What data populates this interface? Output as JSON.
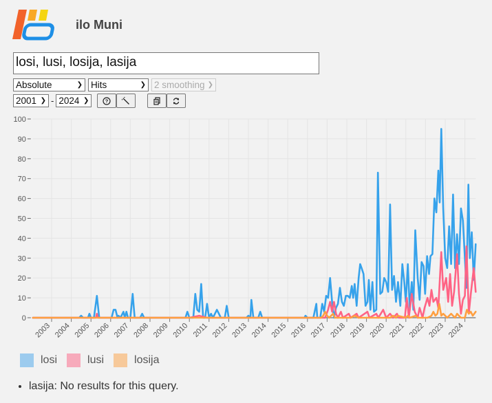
{
  "app": {
    "title": "ilo Muni"
  },
  "query": {
    "value": "losi, lusi, losija, lasija"
  },
  "controls": {
    "scale": "Absolute",
    "metric": "Hits",
    "smoothing": "2 smoothing",
    "start_year": "2001",
    "separator": "-",
    "end_year": "2024",
    "buttons": {
      "help": "?",
      "settings": "wrench",
      "copy": "copy",
      "refresh": "refresh"
    }
  },
  "notes": [
    "lasija: No results for this query."
  ],
  "colors": {
    "losi": "#36a2eb",
    "lusi": "#ff6384",
    "losija": "#ff9f40"
  },
  "chart_data": {
    "type": "line",
    "title": "",
    "xlabel": "",
    "ylabel": "",
    "ylim": [
      0,
      100
    ],
    "yticks": [
      0,
      10,
      20,
      30,
      40,
      50,
      60,
      70,
      80,
      90,
      100
    ],
    "xticks": [
      "2003",
      "2004",
      "2005",
      "2006",
      "2007",
      "2008",
      "2009",
      "2010",
      "2011",
      "2012",
      "2013",
      "2014",
      "2015",
      "2016",
      "2017",
      "2018",
      "2019",
      "2020",
      "2021",
      "2022",
      "2023",
      "2024"
    ],
    "xrange": [
      2002.05,
      2024.55
    ],
    "grid": true,
    "legend": [
      "losi",
      "lusi",
      "losija"
    ],
    "legend_position": "bottom",
    "series": [
      {
        "name": "losi",
        "color": "#36a2eb",
        "points": [
          [
            2002.05,
            0
          ],
          [
            2004.4,
            0
          ],
          [
            2004.5,
            1
          ],
          [
            2004.6,
            0
          ],
          [
            2004.85,
            0
          ],
          [
            2004.92,
            2
          ],
          [
            2005.0,
            0
          ],
          [
            2005.15,
            0
          ],
          [
            2005.3,
            11
          ],
          [
            2005.42,
            0
          ],
          [
            2006.05,
            0
          ],
          [
            2006.15,
            4
          ],
          [
            2006.25,
            4
          ],
          [
            2006.35,
            0
          ],
          [
            2006.4,
            1
          ],
          [
            2006.5,
            0
          ],
          [
            2006.65,
            3
          ],
          [
            2006.72,
            0
          ],
          [
            2006.8,
            3
          ],
          [
            2006.88,
            0
          ],
          [
            2007.0,
            0
          ],
          [
            2007.12,
            12
          ],
          [
            2007.22,
            0
          ],
          [
            2007.5,
            0
          ],
          [
            2007.6,
            2
          ],
          [
            2007.7,
            0
          ],
          [
            2009.8,
            0
          ],
          [
            2009.9,
            3
          ],
          [
            2010.0,
            0
          ],
          [
            2010.2,
            0
          ],
          [
            2010.3,
            12
          ],
          [
            2010.4,
            4
          ],
          [
            2010.5,
            3
          ],
          [
            2010.6,
            17
          ],
          [
            2010.7,
            0
          ],
          [
            2010.8,
            0
          ],
          [
            2010.9,
            7
          ],
          [
            2011.0,
            0
          ],
          [
            2011.1,
            2
          ],
          [
            2011.2,
            0
          ],
          [
            2011.3,
            2
          ],
          [
            2011.4,
            4
          ],
          [
            2011.5,
            2
          ],
          [
            2011.6,
            0
          ],
          [
            2011.8,
            0
          ],
          [
            2011.9,
            6
          ],
          [
            2012.0,
            0
          ],
          [
            2012.9,
            0
          ],
          [
            2013.0,
            1
          ],
          [
            2013.1,
            0
          ],
          [
            2013.15,
            9
          ],
          [
            2013.25,
            0
          ],
          [
            2013.5,
            0
          ],
          [
            2013.6,
            3
          ],
          [
            2013.7,
            0
          ],
          [
            2015.85,
            0
          ],
          [
            2015.9,
            1
          ],
          [
            2016.0,
            0
          ],
          [
            2016.3,
            0
          ],
          [
            2016.45,
            7
          ],
          [
            2016.5,
            0
          ],
          [
            2016.65,
            0
          ],
          [
            2016.75,
            7
          ],
          [
            2016.85,
            3
          ],
          [
            2016.95,
            11
          ],
          [
            2017.05,
            10
          ],
          [
            2017.15,
            20
          ],
          [
            2017.25,
            8
          ],
          [
            2017.35,
            0
          ],
          [
            2017.45,
            5
          ],
          [
            2017.55,
            7
          ],
          [
            2017.65,
            15
          ],
          [
            2017.75,
            8
          ],
          [
            2017.85,
            6
          ],
          [
            2017.95,
            11
          ],
          [
            2018.05,
            11
          ],
          [
            2018.15,
            10
          ],
          [
            2018.25,
            16
          ],
          [
            2018.32,
            10
          ],
          [
            2018.4,
            17
          ],
          [
            2018.5,
            6
          ],
          [
            2018.6,
            20
          ],
          [
            2018.68,
            27
          ],
          [
            2018.75,
            25
          ],
          [
            2018.85,
            22
          ],
          [
            2018.95,
            6
          ],
          [
            2019.05,
            8
          ],
          [
            2019.12,
            19
          ],
          [
            2019.2,
            4
          ],
          [
            2019.3,
            18
          ],
          [
            2019.38,
            3
          ],
          [
            2019.5,
            4
          ],
          [
            2019.58,
            73
          ],
          [
            2019.7,
            12
          ],
          [
            2019.8,
            13
          ],
          [
            2019.9,
            20
          ],
          [
            2020.0,
            18
          ],
          [
            2020.1,
            13
          ],
          [
            2020.2,
            57
          ],
          [
            2020.3,
            14
          ],
          [
            2020.4,
            21
          ],
          [
            2020.5,
            8
          ],
          [
            2020.6,
            18
          ],
          [
            2020.72,
            6
          ],
          [
            2020.82,
            27
          ],
          [
            2020.92,
            18
          ],
          [
            2021.0,
            8
          ],
          [
            2021.1,
            27
          ],
          [
            2021.2,
            4
          ],
          [
            2021.3,
            18
          ],
          [
            2021.38,
            4
          ],
          [
            2021.48,
            44
          ],
          [
            2021.6,
            20
          ],
          [
            2021.7,
            9
          ],
          [
            2021.8,
            28
          ],
          [
            2021.9,
            26
          ],
          [
            2021.98,
            12
          ],
          [
            2022.08,
            31
          ],
          [
            2022.18,
            22
          ],
          [
            2022.25,
            31
          ],
          [
            2022.35,
            32
          ],
          [
            2022.45,
            60
          ],
          [
            2022.55,
            53
          ],
          [
            2022.65,
            74
          ],
          [
            2022.72,
            58
          ],
          [
            2022.8,
            95
          ],
          [
            2022.9,
            55
          ],
          [
            2023.0,
            30
          ],
          [
            2023.1,
            25
          ],
          [
            2023.2,
            46
          ],
          [
            2023.3,
            27
          ],
          [
            2023.4,
            62
          ],
          [
            2023.5,
            25
          ],
          [
            2023.6,
            42
          ],
          [
            2023.7,
            27
          ],
          [
            2023.8,
            55
          ],
          [
            2023.9,
            49
          ],
          [
            2024.0,
            30
          ],
          [
            2024.08,
            15
          ],
          [
            2024.18,
            67
          ],
          [
            2024.25,
            30
          ],
          [
            2024.35,
            43
          ],
          [
            2024.45,
            19
          ],
          [
            2024.55,
            37
          ]
        ]
      },
      {
        "name": "lusi",
        "color": "#ff6384",
        "points": [
          [
            2002.05,
            0
          ],
          [
            2005.25,
            0
          ],
          [
            2005.3,
            2
          ],
          [
            2005.35,
            0
          ],
          [
            2010.0,
            0
          ],
          [
            2010.5,
            1
          ],
          [
            2010.9,
            0
          ],
          [
            2016.9,
            0
          ],
          [
            2017.05,
            4
          ],
          [
            2017.15,
            8
          ],
          [
            2017.25,
            3
          ],
          [
            2017.35,
            8
          ],
          [
            2017.45,
            2
          ],
          [
            2017.55,
            0
          ],
          [
            2017.7,
            3
          ],
          [
            2017.8,
            0
          ],
          [
            2018.1,
            2
          ],
          [
            2018.2,
            0
          ],
          [
            2018.5,
            2
          ],
          [
            2018.6,
            0
          ],
          [
            2019.05,
            3
          ],
          [
            2019.15,
            0
          ],
          [
            2019.5,
            2
          ],
          [
            2019.6,
            0
          ],
          [
            2019.85,
            4
          ],
          [
            2020.0,
            0
          ],
          [
            2020.2,
            2
          ],
          [
            2020.35,
            0
          ],
          [
            2020.55,
            2
          ],
          [
            2020.65,
            0
          ],
          [
            2020.95,
            0
          ],
          [
            2021.05,
            10
          ],
          [
            2021.15,
            0
          ],
          [
            2021.3,
            12
          ],
          [
            2021.45,
            3
          ],
          [
            2021.6,
            0
          ],
          [
            2021.7,
            5
          ],
          [
            2021.85,
            0
          ],
          [
            2021.95,
            5
          ],
          [
            2022.1,
            10
          ],
          [
            2022.2,
            6
          ],
          [
            2022.3,
            14
          ],
          [
            2022.4,
            8
          ],
          [
            2022.55,
            10
          ],
          [
            2022.65,
            5
          ],
          [
            2022.8,
            33
          ],
          [
            2022.9,
            14
          ],
          [
            2023.05,
            20
          ],
          [
            2023.15,
            8
          ],
          [
            2023.25,
            22
          ],
          [
            2023.35,
            6
          ],
          [
            2023.45,
            13
          ],
          [
            2023.6,
            32
          ],
          [
            2023.7,
            12
          ],
          [
            2023.8,
            2
          ],
          [
            2023.9,
            9
          ],
          [
            2024.0,
            11
          ],
          [
            2024.08,
            36
          ],
          [
            2024.2,
            2
          ],
          [
            2024.3,
            12
          ],
          [
            2024.45,
            25
          ],
          [
            2024.55,
            13
          ]
        ]
      },
      {
        "name": "losija",
        "color": "#ff9f40",
        "points": [
          [
            2002.05,
            0
          ],
          [
            2016.7,
            0
          ],
          [
            2016.8,
            1
          ],
          [
            2016.9,
            3
          ],
          [
            2017.0,
            1
          ],
          [
            2017.1,
            0
          ],
          [
            2017.3,
            2
          ],
          [
            2017.4,
            0
          ],
          [
            2018.2,
            0
          ],
          [
            2018.4,
            1
          ],
          [
            2018.6,
            0
          ],
          [
            2020.2,
            0
          ],
          [
            2020.35,
            1
          ],
          [
            2020.5,
            0
          ],
          [
            2020.6,
            1
          ],
          [
            2021.0,
            0
          ],
          [
            2021.1,
            1
          ],
          [
            2021.2,
            0
          ],
          [
            2021.5,
            1
          ],
          [
            2021.6,
            0
          ],
          [
            2022.1,
            0
          ],
          [
            2022.3,
            1
          ],
          [
            2022.4,
            3
          ],
          [
            2022.5,
            1
          ],
          [
            2022.6,
            2
          ],
          [
            2022.7,
            7
          ],
          [
            2022.8,
            1
          ],
          [
            2022.9,
            2
          ],
          [
            2023.0,
            1
          ],
          [
            2023.1,
            0
          ],
          [
            2023.3,
            2
          ],
          [
            2023.4,
            1
          ],
          [
            2023.5,
            0
          ],
          [
            2023.6,
            2
          ],
          [
            2023.7,
            1
          ],
          [
            2023.8,
            0
          ],
          [
            2024.0,
            0
          ],
          [
            2024.1,
            4
          ],
          [
            2024.2,
            2
          ],
          [
            2024.3,
            3
          ],
          [
            2024.4,
            1
          ],
          [
            2024.55,
            3
          ]
        ]
      }
    ]
  }
}
